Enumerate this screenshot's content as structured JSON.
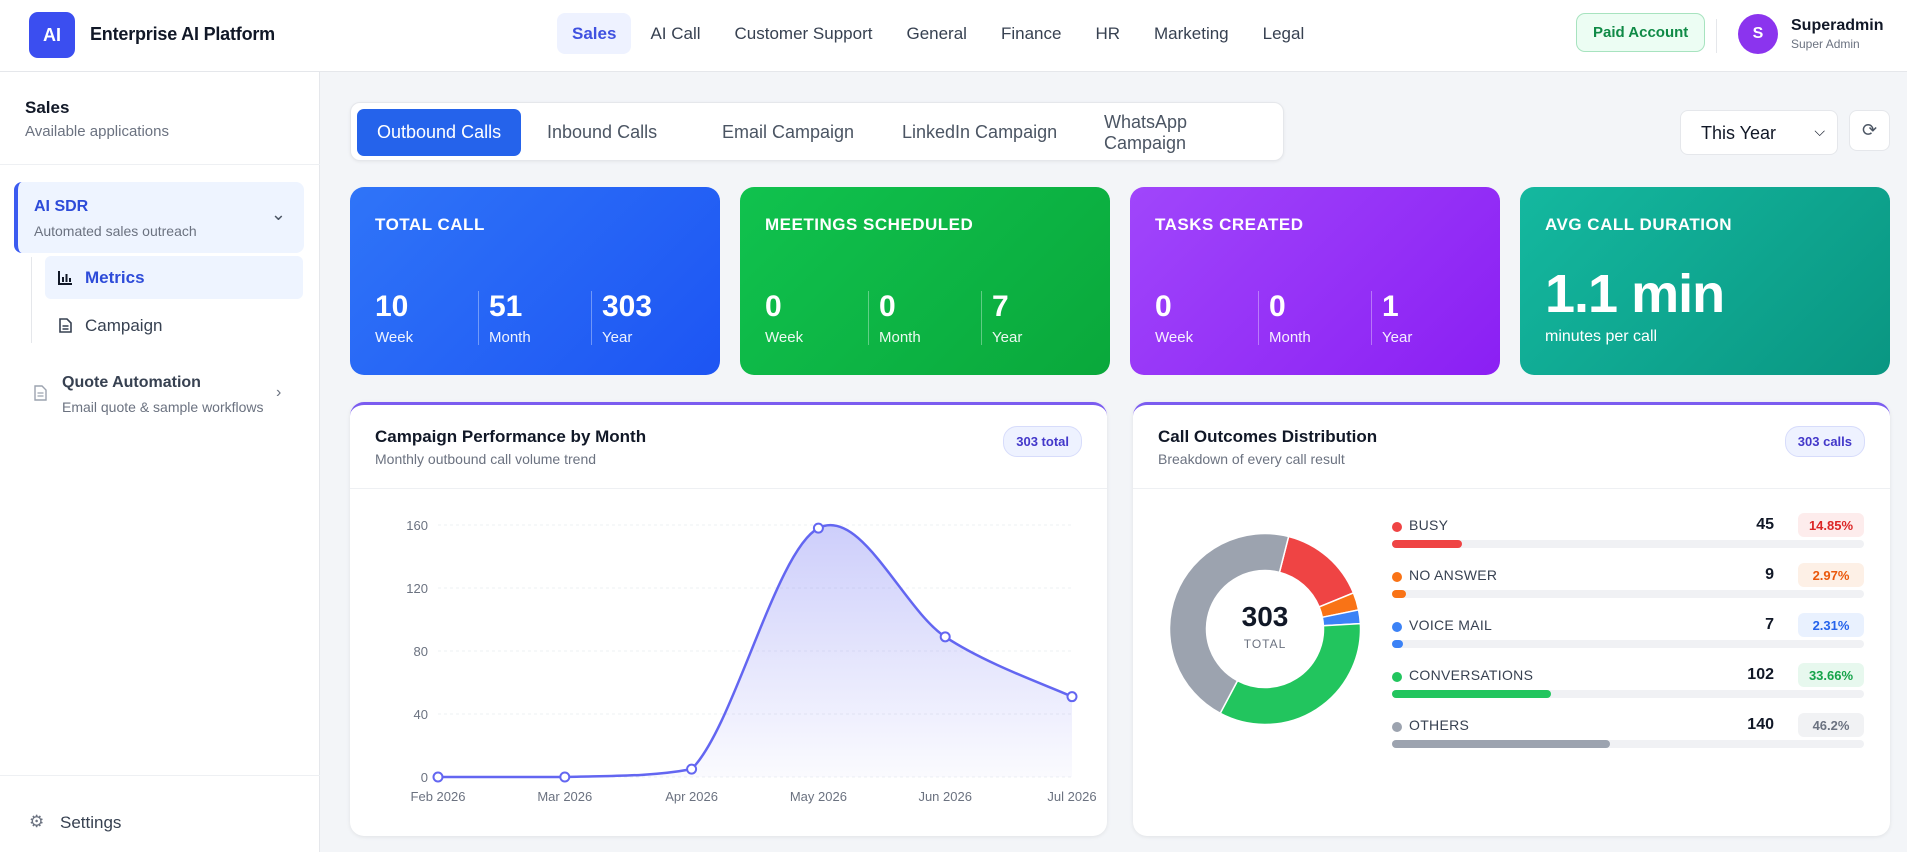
{
  "header": {
    "logo": "AI",
    "brand": "Enterprise AI Platform",
    "nav": [
      "Sales",
      "AI Call",
      "Customer Support",
      "General",
      "Finance",
      "HR",
      "Marketing",
      "Legal"
    ],
    "paid": "Paid Account",
    "avatar": "S",
    "user_name": "Superadmin",
    "user_role": "Super Admin"
  },
  "sidebar": {
    "title": "Sales",
    "subtitle": "Available applications",
    "app": {
      "name": "AI SDR",
      "desc": "Automated sales outreach"
    },
    "sub_items": [
      "Metrics",
      "Campaign"
    ],
    "app2": {
      "name": "Quote Automation",
      "desc": "Email quote & sample workflows"
    },
    "settings": "Settings"
  },
  "tabs": [
    "Outbound Calls",
    "Inbound Calls",
    "Email Campaign",
    "LinkedIn Campaign",
    "WhatsApp Campaign"
  ],
  "period": "This Year",
  "stats": {
    "total_call": {
      "label": "TOTAL CALL",
      "week": "10",
      "month": "51",
      "year": "303"
    },
    "meetings": {
      "label": "MEETINGS SCHEDULED",
      "week": "0",
      "month": "0",
      "year": "7"
    },
    "tasks": {
      "label": "TASKS CREATED",
      "week": "0",
      "month": "0",
      "year": "1"
    },
    "avg": {
      "label": "AVG CALL DURATION",
      "value": "1.1 min",
      "caption": "minutes per call"
    },
    "captions": {
      "week": "Week",
      "month": "Month",
      "year": "Year"
    }
  },
  "performance": {
    "title": "Campaign Performance by Month",
    "subtitle": "Monthly outbound call volume trend",
    "badge": "303 total"
  },
  "outcomes": {
    "title": "Call Outcomes Distribution",
    "subtitle": "Breakdown of every call result",
    "badge": "303 calls",
    "center_value": "303",
    "center_label": "TOTAL",
    "items": [
      {
        "name": "BUSY",
        "count": "45",
        "pct": "14.85%",
        "frac": 0.1485,
        "color": "#ef4444",
        "bg": "#fdecec",
        "fg": "#dc2626"
      },
      {
        "name": "NO ANSWER",
        "count": "9",
        "pct": "2.97%",
        "frac": 0.0297,
        "color": "#f97316",
        "bg": "#fdf0e6",
        "fg": "#ea580c"
      },
      {
        "name": "VOICE MAIL",
        "count": "7",
        "pct": "2.31%",
        "frac": 0.0231,
        "color": "#3b82f6",
        "bg": "#e9f1fe",
        "fg": "#2563eb"
      },
      {
        "name": "CONVERSATIONS",
        "count": "102",
        "pct": "33.66%",
        "frac": 0.3366,
        "color": "#22c55e",
        "bg": "#e7f8ee",
        "fg": "#16a34a"
      },
      {
        "name": "OTHERS",
        "count": "140",
        "pct": "46.2%",
        "frac": 0.462,
        "color": "#9ca3af",
        "bg": "#f1f2f4",
        "fg": "#6b7280"
      }
    ]
  },
  "chart_data": [
    {
      "type": "area",
      "categories": [
        "Feb 2026",
        "Mar 2026",
        "Apr 2026",
        "May 2026",
        "Jun 2026",
        "Jul 2026"
      ],
      "values": [
        0,
        0,
        5,
        158,
        89,
        51
      ],
      "ylim": [
        0,
        160
      ],
      "yticks": [
        "0",
        "40",
        "80",
        "120",
        "160"
      ],
      "color": "#6366f1",
      "grid": true
    },
    {
      "type": "pie",
      "categories": [
        "BUSY",
        "NO ANSWER",
        "VOICE MAIL",
        "CONVERSATIONS",
        "OTHERS"
      ],
      "values": [
        45,
        9,
        7,
        102,
        140
      ],
      "colors": [
        "#ef4444",
        "#f97316",
        "#3b82f6",
        "#22c55e",
        "#9ca3af"
      ]
    }
  ]
}
